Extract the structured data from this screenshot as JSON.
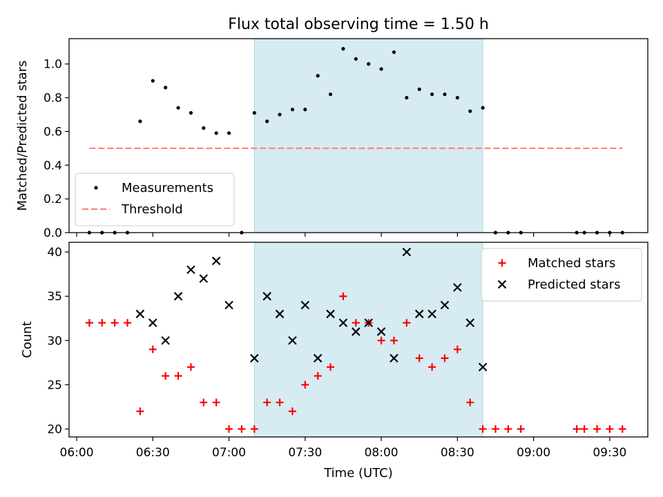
{
  "figure": {
    "title": "Flux total observing time = 1.50 h"
  },
  "colors": {
    "highlight": "#add8e6",
    "threshold": "#ff7f7f",
    "matched": "#ff0000",
    "predicted": "#000000"
  },
  "chart_data": [
    {
      "type": "scatter",
      "title": "Flux total observing time = 1.50 h",
      "xlabel": "",
      "ylabel": "Matched/Predicted stars",
      "xlim": [
        "05:57",
        "09:45"
      ],
      "ylim": [
        0,
        1.15
      ],
      "yticks": [
        "0.0",
        "0.2",
        "0.4",
        "0.6",
        "0.8",
        "1.0"
      ],
      "highlight_span": [
        "07:10",
        "08:40"
      ],
      "legend": {
        "position": "lower-left",
        "entries": [
          "Measurements",
          "Threshold"
        ]
      },
      "threshold": {
        "name": "Threshold",
        "value": 0.5,
        "x_range": [
          "06:05",
          "09:35"
        ]
      },
      "series": [
        {
          "name": "Measurements",
          "marker": "dot",
          "points": [
            [
              "06:05",
              0.0
            ],
            [
              "06:10",
              0.0
            ],
            [
              "06:15",
              0.0
            ],
            [
              "06:20",
              0.0
            ],
            [
              "06:25",
              0.66
            ],
            [
              "06:30",
              0.9
            ],
            [
              "06:35",
              0.86
            ],
            [
              "06:40",
              0.74
            ],
            [
              "06:45",
              0.71
            ],
            [
              "06:50",
              0.62
            ],
            [
              "06:55",
              0.59
            ],
            [
              "07:00",
              0.59
            ],
            [
              "07:05",
              0.0
            ],
            [
              "07:10",
              0.71
            ],
            [
              "07:15",
              0.66
            ],
            [
              "07:20",
              0.7
            ],
            [
              "07:25",
              0.73
            ],
            [
              "07:30",
              0.73
            ],
            [
              "07:35",
              0.93
            ],
            [
              "07:40",
              0.82
            ],
            [
              "07:45",
              1.09
            ],
            [
              "07:50",
              1.03
            ],
            [
              "07:55",
              1.0
            ],
            [
              "08:00",
              0.97
            ],
            [
              "08:05",
              1.07
            ],
            [
              "08:10",
              0.8
            ],
            [
              "08:15",
              0.85
            ],
            [
              "08:20",
              0.82
            ],
            [
              "08:25",
              0.82
            ],
            [
              "08:30",
              0.8
            ],
            [
              "08:35",
              0.72
            ],
            [
              "08:40",
              0.74
            ],
            [
              "08:45",
              0.0
            ],
            [
              "08:50",
              0.0
            ],
            [
              "08:55",
              0.0
            ],
            [
              "09:17",
              0.0
            ],
            [
              "09:20",
              0.0
            ],
            [
              "09:25",
              0.0
            ],
            [
              "09:30",
              0.0
            ],
            [
              "09:35",
              0.0
            ]
          ]
        }
      ]
    },
    {
      "type": "scatter",
      "xlabel": "Time (UTC)",
      "ylabel": "Count",
      "xlim": [
        "05:57",
        "09:45"
      ],
      "ylim": [
        19.1,
        41.1
      ],
      "xticks": [
        "06:00",
        "06:30",
        "07:00",
        "07:30",
        "08:00",
        "08:30",
        "09:00",
        "09:30"
      ],
      "yticks": [
        "20",
        "25",
        "30",
        "35",
        "40"
      ],
      "highlight_span": [
        "07:10",
        "08:40"
      ],
      "legend": {
        "position": "top-right",
        "entries": [
          "Matched stars",
          "Predicted stars"
        ]
      },
      "series": [
        {
          "name": "Matched stars",
          "marker": "plus",
          "points": [
            [
              "06:05",
              32
            ],
            [
              "06:10",
              32
            ],
            [
              "06:15",
              32
            ],
            [
              "06:20",
              32
            ],
            [
              "06:25",
              22
            ],
            [
              "06:30",
              29
            ],
            [
              "06:35",
              26
            ],
            [
              "06:40",
              26
            ],
            [
              "06:45",
              27
            ],
            [
              "06:50",
              23
            ],
            [
              "06:55",
              23
            ],
            [
              "07:00",
              20
            ],
            [
              "07:05",
              20
            ],
            [
              "07:10",
              20
            ],
            [
              "07:15",
              23
            ],
            [
              "07:20",
              23
            ],
            [
              "07:25",
              22
            ],
            [
              "07:30",
              25
            ],
            [
              "07:35",
              26
            ],
            [
              "07:40",
              27
            ],
            [
              "07:45",
              35
            ],
            [
              "07:50",
              32
            ],
            [
              "07:55",
              32
            ],
            [
              "08:00",
              30
            ],
            [
              "08:05",
              30
            ],
            [
              "08:10",
              32
            ],
            [
              "08:15",
              28
            ],
            [
              "08:20",
              27
            ],
            [
              "08:25",
              28
            ],
            [
              "08:30",
              29
            ],
            [
              "08:35",
              23
            ],
            [
              "08:40",
              20
            ],
            [
              "08:45",
              20
            ],
            [
              "08:50",
              20
            ],
            [
              "08:55",
              20
            ],
            [
              "09:17",
              20
            ],
            [
              "09:20",
              20
            ],
            [
              "09:25",
              20
            ],
            [
              "09:30",
              20
            ],
            [
              "09:35",
              20
            ]
          ]
        },
        {
          "name": "Predicted stars",
          "marker": "x",
          "points": [
            [
              "06:25",
              33
            ],
            [
              "06:30",
              32
            ],
            [
              "06:35",
              30
            ],
            [
              "06:40",
              35
            ],
            [
              "06:45",
              38
            ],
            [
              "06:50",
              37
            ],
            [
              "06:55",
              39
            ],
            [
              "07:00",
              34
            ],
            [
              "07:10",
              28
            ],
            [
              "07:15",
              35
            ],
            [
              "07:20",
              33
            ],
            [
              "07:25",
              30
            ],
            [
              "07:30",
              34
            ],
            [
              "07:35",
              28
            ],
            [
              "07:40",
              33
            ],
            [
              "07:45",
              32
            ],
            [
              "07:50",
              31
            ],
            [
              "07:55",
              32
            ],
            [
              "08:00",
              31
            ],
            [
              "08:05",
              28
            ],
            [
              "08:10",
              40
            ],
            [
              "08:15",
              33
            ],
            [
              "08:20",
              33
            ],
            [
              "08:25",
              34
            ],
            [
              "08:30",
              36
            ],
            [
              "08:35",
              32
            ],
            [
              "08:40",
              27
            ]
          ]
        }
      ]
    }
  ]
}
